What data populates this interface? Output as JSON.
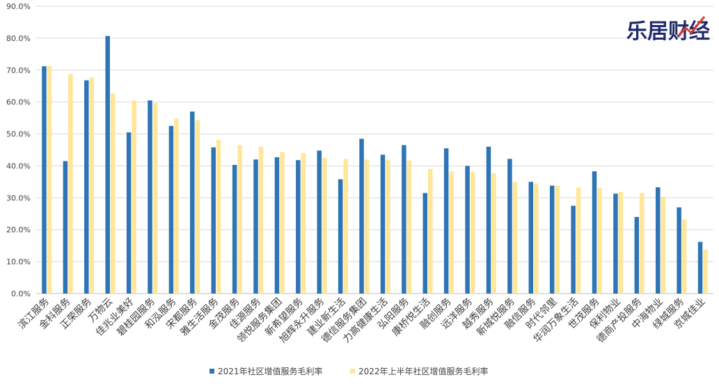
{
  "chart_data": {
    "type": "bar",
    "ylim": [
      0,
      90
    ],
    "ytick_labels": [
      "0.0%",
      "10.0%",
      "20.0%",
      "30.0%",
      "40.0%",
      "50.0%",
      "60.0%",
      "70.0%",
      "80.0%",
      "90.0%"
    ],
    "categories": [
      "滨江服务",
      "金科服务",
      "正荣服务",
      "万物云",
      "佳兆业美好",
      "碧桂园服务",
      "和泓服务",
      "宋都服务",
      "雅生活服务",
      "金茂服务",
      "佳源服务",
      "领悦服务集团",
      "新希望服务",
      "旭辉永升服务",
      "建业新生活",
      "德信服务集团",
      "力高健康生活",
      "弘阳服务",
      "康桥悦生活",
      "融创服务",
      "远洋服务",
      "越秀服务",
      "新城悦服务",
      "融信服务",
      "时代邻里",
      "华润万象生活",
      "世茂服务",
      "保利物业",
      "德商产投服务",
      "中海物业",
      "绿城服务",
      "京城佳业"
    ],
    "series": [
      {
        "name": "2021年社区增值服务毛利率",
        "color": "#2e75b6",
        "values": [
          71.2,
          41.5,
          66.8,
          80.7,
          50.5,
          60.5,
          52.5,
          57.0,
          45.8,
          40.3,
          42.0,
          42.7,
          41.8,
          44.8,
          35.8,
          48.5,
          43.5,
          46.5,
          31.5,
          45.5,
          40.0,
          46.0,
          42.2,
          35.0,
          33.8,
          27.5,
          38.3,
          31.3,
          24.0,
          33.3,
          27.0,
          16.2
        ]
      },
      {
        "name": "2022年上半年社区增值服务毛利率",
        "color": "#ffe699",
        "values": [
          71.3,
          68.8,
          67.7,
          62.7,
          60.5,
          59.7,
          54.8,
          54.3,
          48.2,
          46.5,
          46.0,
          44.3,
          44.0,
          42.5,
          42.2,
          42.0,
          41.8,
          41.7,
          39.0,
          38.3,
          38.0,
          37.7,
          35.0,
          34.5,
          33.8,
          33.2,
          33.0,
          31.8,
          31.5,
          30.3,
          23.2,
          13.8
        ]
      }
    ]
  },
  "watermark": {
    "text": "乐居财经",
    "color": "#1f2a6b",
    "accent": "#e03c31"
  }
}
